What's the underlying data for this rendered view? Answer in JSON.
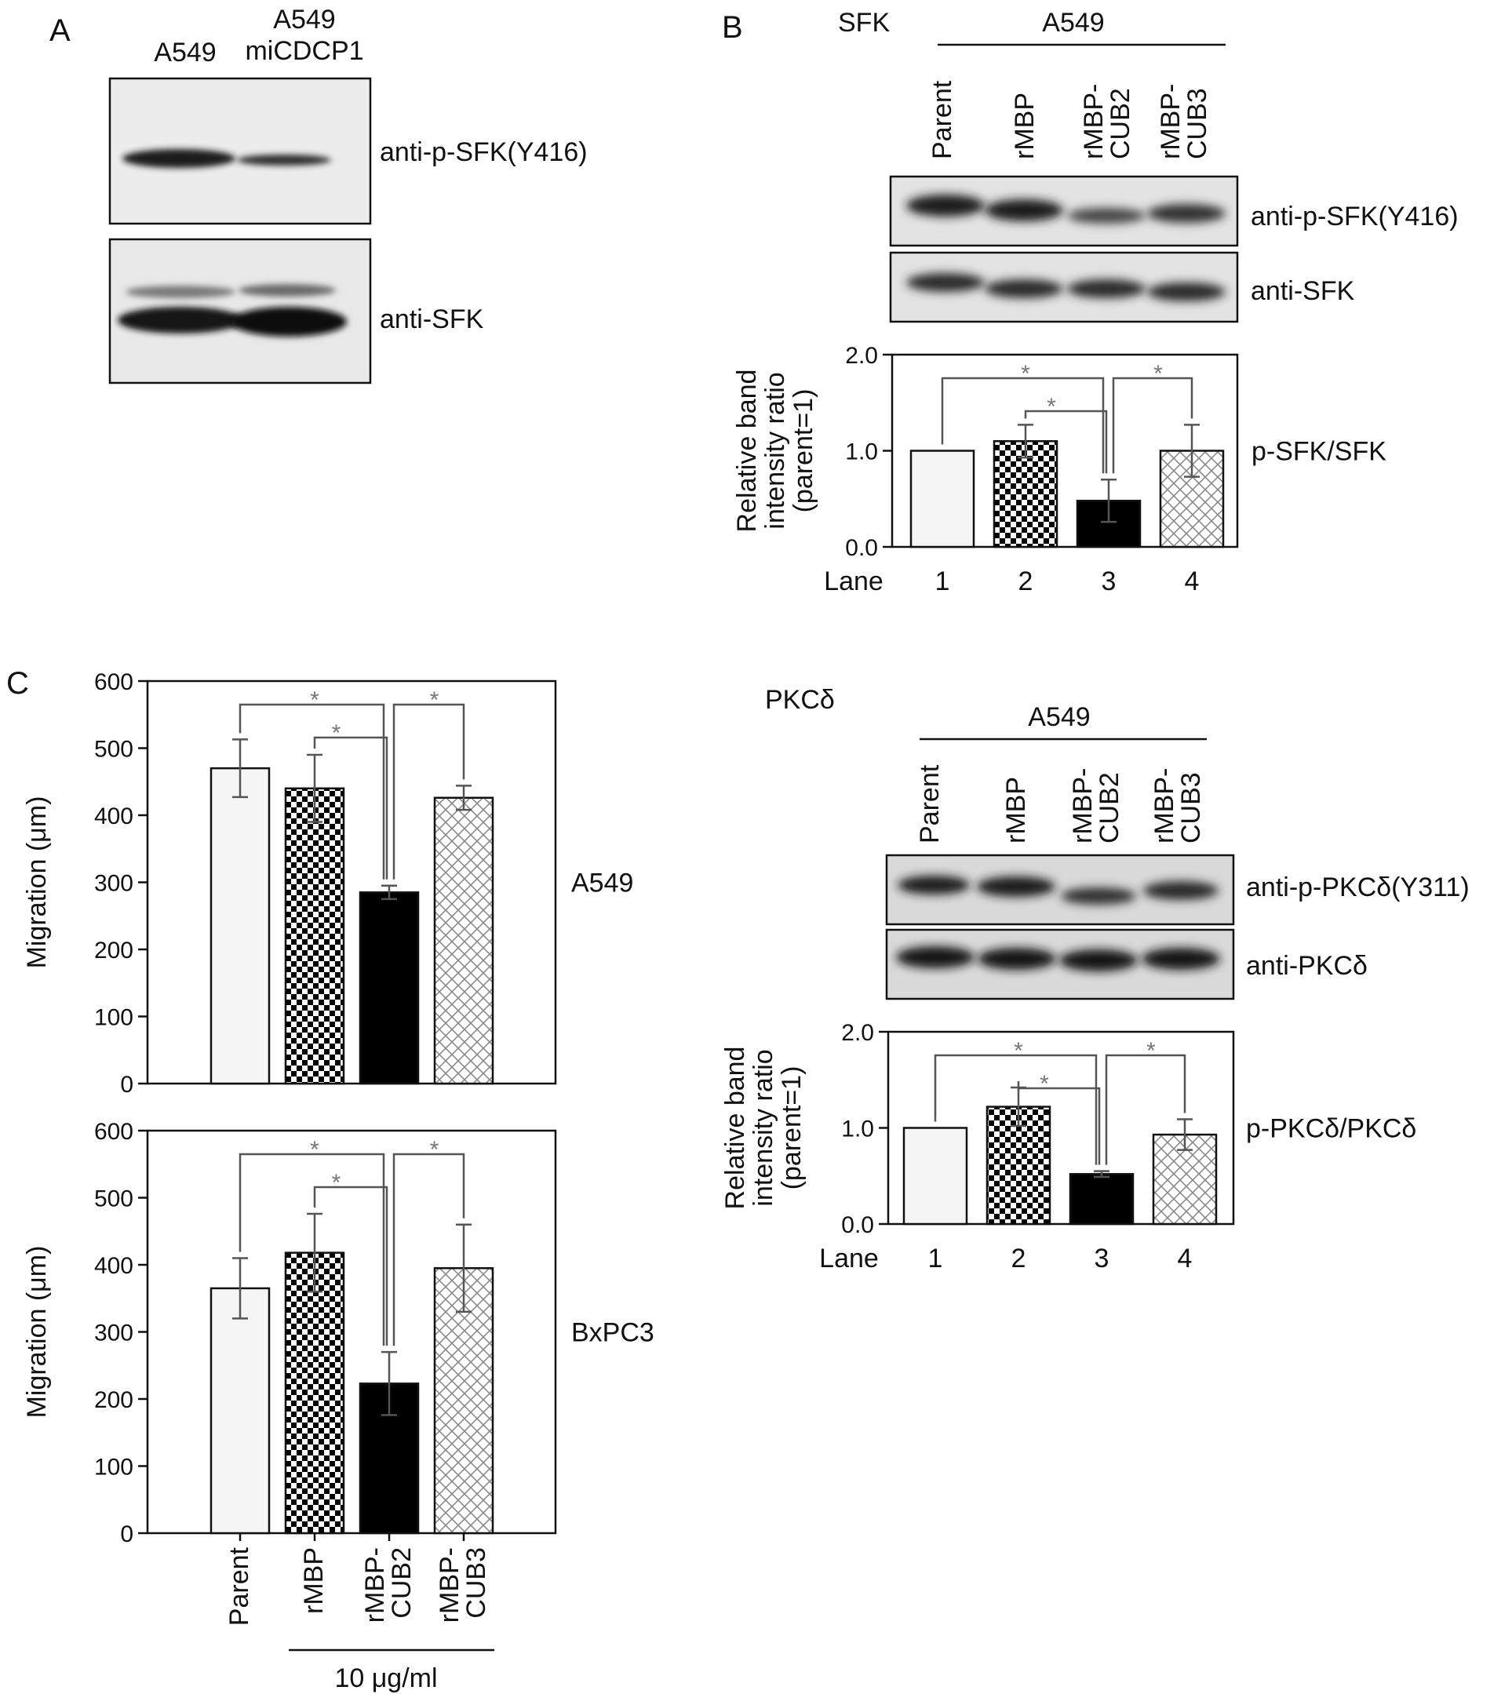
{
  "panels": {
    "a": {
      "letter": "A",
      "lanes": [
        "A549",
        "A549\nmiCDCP1"
      ],
      "blots": [
        "anti-p-SFK(Y416)",
        "anti-SFK"
      ]
    },
    "b": {
      "letter": "B",
      "target": "SFK",
      "cell_line": "A549",
      "lanes": [
        "Parent",
        "rMBP",
        "rMBP-\nCUB2",
        "rMBP-\nCUB3"
      ],
      "blots": [
        "anti-p-SFK(Y416)",
        "anti-SFK"
      ]
    },
    "b2": {
      "target": "PKCδ",
      "cell_line": "A549",
      "lanes": [
        "Parent",
        "rMBP",
        "rMBP-\nCUB2",
        "rMBP-\nCUB3"
      ],
      "blots": [
        "anti-p-PKCδ(Y311)",
        "anti-PKCδ"
      ]
    },
    "c": {
      "letter": "C",
      "concentration": "10 μg/ml",
      "categories": [
        "Parent",
        "rMBP",
        "rMBP-\nCUB2",
        "rMBP-\nCUB3"
      ]
    }
  },
  "significance_marker": "*",
  "chart_data": [
    {
      "id": "sfk",
      "type": "bar",
      "categories": [
        "1",
        "2",
        "3",
        "4"
      ],
      "xlabel": "Lane",
      "ylabel": "Relative band\nintensity ratio\n(parent=1)",
      "series_label": "p-SFK/SFK",
      "values": [
        1.0,
        1.1,
        0.48,
        1.0
      ],
      "errors": [
        0,
        0.17,
        0.22,
        0.27
      ],
      "ylim": [
        0,
        2.0
      ],
      "yticks": [
        "0.0",
        "1.0",
        "2.0"
      ],
      "fills": [
        "plain",
        "checker",
        "solid",
        "crosshatch"
      ],
      "comparisons": [
        [
          1,
          3
        ],
        [
          2,
          3
        ],
        [
          4,
          3
        ]
      ]
    },
    {
      "id": "pkc",
      "type": "bar",
      "categories": [
        "1",
        "2",
        "3",
        "4"
      ],
      "xlabel": "Lane",
      "ylabel": "Relative band\nintensity ratio\n(parent=1)",
      "series_label": "p-PKCδ/PKCδ",
      "values": [
        1.0,
        1.22,
        0.52,
        0.93
      ],
      "errors": [
        0,
        0.2,
        0.03,
        0.16
      ],
      "ylim": [
        0,
        2.0
      ],
      "yticks": [
        "0.0",
        "1.0",
        "2.0"
      ],
      "fills": [
        "plain",
        "checker",
        "solid",
        "crosshatch"
      ],
      "comparisons": [
        [
          1,
          3
        ],
        [
          2,
          3
        ],
        [
          4,
          3
        ]
      ]
    },
    {
      "id": "mig_a549",
      "type": "bar",
      "categories": [
        "Parent",
        "rMBP",
        "rMBP-CUB2",
        "rMBP-CUB3"
      ],
      "ylabel": "Migration (μm)",
      "series_label": "A549",
      "values": [
        470,
        440,
        285,
        426
      ],
      "errors": [
        43,
        50,
        10,
        18
      ],
      "ylim": [
        0,
        600
      ],
      "yticks": [
        "0",
        "100",
        "200",
        "300",
        "400",
        "500",
        "600"
      ],
      "fills": [
        "plain",
        "checker",
        "solid",
        "crosshatch"
      ],
      "comparisons": [
        [
          1,
          3
        ],
        [
          2,
          3
        ],
        [
          4,
          3
        ]
      ]
    },
    {
      "id": "mig_bxpc3",
      "type": "bar",
      "categories": [
        "Parent",
        "rMBP",
        "rMBP-CUB2",
        "rMBP-CUB3"
      ],
      "ylabel": "Migration (μm)",
      "series_label": "BxPC3",
      "values": [
        365,
        418,
        223,
        395
      ],
      "errors": [
        45,
        58,
        47,
        65
      ],
      "ylim": [
        0,
        600
      ],
      "yticks": [
        "0",
        "100",
        "200",
        "300",
        "400",
        "500",
        "600"
      ],
      "fills": [
        "plain",
        "checker",
        "solid",
        "crosshatch"
      ],
      "comparisons": [
        [
          1,
          3
        ],
        [
          2,
          3
        ],
        [
          4,
          3
        ]
      ]
    }
  ]
}
